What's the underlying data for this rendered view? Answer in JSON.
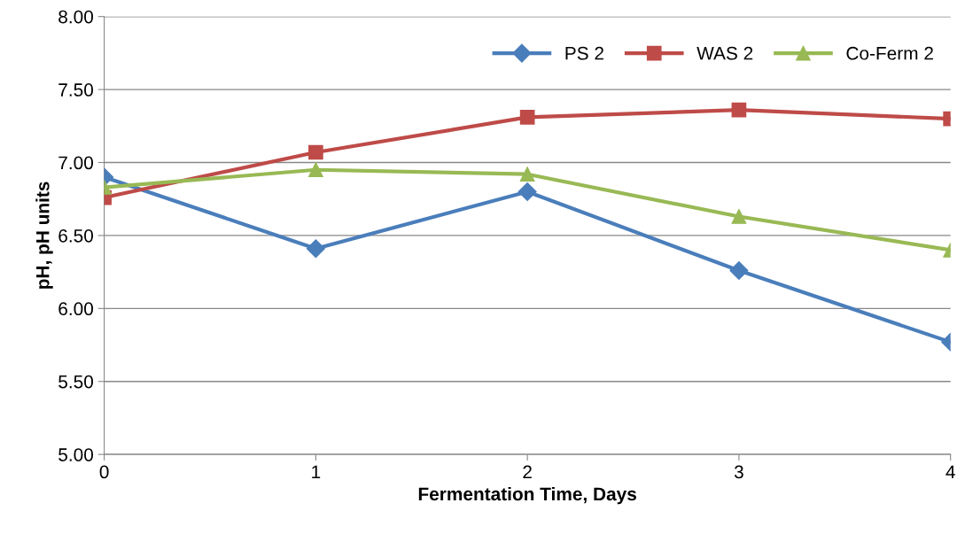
{
  "chart_data": {
    "type": "line",
    "xlabel": "Fermentation Time, Days",
    "ylabel": "pH, pH units",
    "x": [
      0,
      1,
      2,
      3,
      4
    ],
    "series": [
      {
        "name": "PS 2",
        "color": "#4a7ebb",
        "marker": "diamond",
        "values": [
          6.9,
          6.41,
          6.8,
          6.26,
          5.77
        ]
      },
      {
        "name": "WAS 2",
        "color": "#be4b48",
        "marker": "square",
        "values": [
          6.76,
          7.07,
          7.31,
          7.36,
          7.3
        ]
      },
      {
        "name": "Co-Ferm 2",
        "color": "#98b954",
        "marker": "triangle",
        "values": [
          6.83,
          6.95,
          6.92,
          6.63,
          6.4
        ]
      }
    ],
    "xlim": [
      0,
      4
    ],
    "xticks": [
      0,
      1,
      2,
      3,
      4
    ],
    "ylim": [
      5.0,
      8.0
    ],
    "yticks": [
      {
        "value": 5.0,
        "label": "5.00"
      },
      {
        "value": 5.5,
        "label": "5.50"
      },
      {
        "value": 6.0,
        "label": "6.00"
      },
      {
        "value": 6.5,
        "label": "6.50"
      },
      {
        "value": 7.0,
        "label": "7.00"
      },
      {
        "value": 7.5,
        "label": "7.50"
      },
      {
        "value": 8.0,
        "label": "8.00"
      }
    ],
    "grid": "y",
    "legend": "top right"
  }
}
